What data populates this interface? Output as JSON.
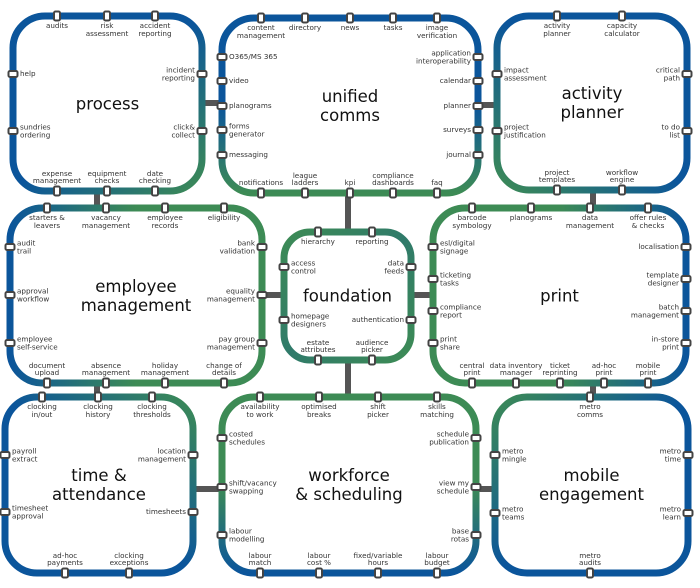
{
  "colors": {
    "blue": "#0b559b",
    "green": "#3d8b55",
    "connector": "#555555",
    "station_fill": "#ffffff",
    "station_border": "#444444"
  },
  "boxes": [
    {
      "id": "process",
      "title": "process",
      "top": [
        "audits",
        "risk\nassessment",
        "accident\nreporting"
      ],
      "left": [
        "help",
        "sundries\nordering"
      ],
      "right": [
        "incident\nreporting",
        "click&\ncollect"
      ],
      "bottom": [
        "expense\nmanagement",
        "equipment\nchecks",
        "date\nchecking"
      ]
    },
    {
      "id": "unified-comms",
      "title": "unified\ncomms",
      "top": [
        "content\nmanagement",
        "directory",
        "news",
        "tasks",
        "image\nverification"
      ],
      "left": [
        "O365/MS 365",
        "video",
        "planograms",
        "forms\ngenerator",
        "messaging"
      ],
      "right": [
        "application\ninteroperability",
        "calendar",
        "planner",
        "surveys",
        "journal"
      ],
      "bottom": [
        "notifications",
        "league\nladders",
        "kpi",
        "compliance\ndashboards",
        "faq"
      ]
    },
    {
      "id": "activity-planner",
      "title": "activity\nplanner",
      "top": [
        "activity\nplanner",
        "capacity\ncalculator"
      ],
      "left": [
        "impact\nassessment",
        "project\njustification"
      ],
      "right": [
        "critical\npath",
        "to do\nlist"
      ],
      "bottom": [
        "project\ntemplates",
        "workflow\nengine"
      ]
    },
    {
      "id": "employee-management",
      "title": "employee\nmanagement",
      "top": [
        "starters &\nleavers",
        "vacancy\nmanagement",
        "employee\nrecords",
        "eligibility"
      ],
      "left": [
        "audit\ntrail",
        "approval\nworkflow",
        "employee\nself-service"
      ],
      "right": [
        "bank\nvalidation",
        "equality\nmanagement",
        "pay group\nmanagement"
      ],
      "bottom": [
        "document\nupload",
        "absence\nmanagement",
        "holiday\nmanagement",
        "change of\ndetails"
      ]
    },
    {
      "id": "foundation",
      "title": "foundation",
      "top": [
        "hierarchy",
        "reporting"
      ],
      "left": [
        "access\ncontrol",
        "homepage\ndesigners"
      ],
      "right": [
        "data\nfeeds",
        "authentication"
      ],
      "bottom": [
        "estate\nattributes",
        "audience\npicker"
      ]
    },
    {
      "id": "print",
      "title": "print",
      "top": [
        "barcode\nsymbology",
        "planograms",
        "data\nmanagement",
        "offer rules\n& checks"
      ],
      "left": [
        "esl/digital\nsignage",
        "ticketing\ntasks",
        "compliance\nreport",
        "print\nshare"
      ],
      "right": [
        "localisation",
        "template\ndesigner",
        "batch\nmanagement",
        "in-store\nprint"
      ],
      "bottom": [
        "central\nprint",
        "data inventory\nmanager",
        "ticket\nreprinting",
        "ad-hoc\nprint",
        "mobile\nprint"
      ]
    },
    {
      "id": "time-attendance",
      "title": "time &\nattendance",
      "top": [
        "clocking\nin/out",
        "clocking\nhistory",
        "clocking\nthresholds"
      ],
      "left": [
        "payroll\nextract",
        "timesheet\napproval"
      ],
      "right": [
        "location\nmanagement",
        "timesheets"
      ],
      "bottom": [
        "ad-hoc\npayments",
        "clocking\nexceptions"
      ]
    },
    {
      "id": "workforce-scheduling",
      "title": "workforce\n& scheduling",
      "top": [
        "availability\nto work",
        "optimised\nbreaks",
        "shift\npicker",
        "skills\nmatching"
      ],
      "left": [
        "costed\nschedules",
        "shift/vacancy\nswapping",
        "labour\nmodelling"
      ],
      "right": [
        "schedule\npublication",
        "view my\nschedule",
        "base\nrotas"
      ],
      "bottom": [
        "labour\nmatch",
        "labour\ncost %",
        "fixed/variable\nhours",
        "labour\nbudget"
      ]
    },
    {
      "id": "mobile-engagement",
      "title": "mobile\nengagement",
      "top": [
        "metro\ncomms"
      ],
      "left": [
        "metro\nmingle",
        "metro\nteams"
      ],
      "right": [
        "metro\ntime",
        "metro\nlearn"
      ],
      "bottom": [
        "metro\naudits"
      ]
    }
  ]
}
